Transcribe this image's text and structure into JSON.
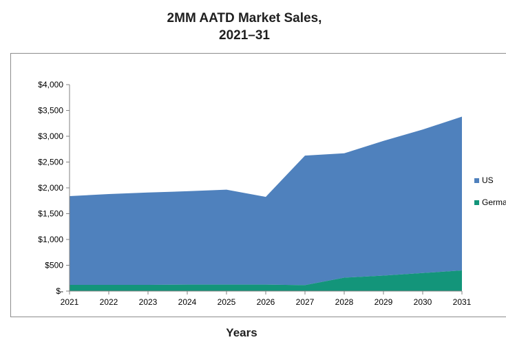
{
  "chart_data": {
    "type": "area",
    "title_line1": "2MM AATD Market Sales,",
    "title_line2": "2021–31",
    "xlabel": "Years",
    "ylabel": "",
    "x": [
      2021,
      2022,
      2023,
      2024,
      2025,
      2026,
      2027,
      2028,
      2029,
      2030,
      2031
    ],
    "ylim": [
      0,
      4000
    ],
    "yticks": [
      0,
      500,
      1000,
      1500,
      2000,
      2500,
      3000,
      3500,
      4000
    ],
    "ytick_labels": [
      "$-",
      "$500",
      "$1,000",
      "$1,500",
      "$2,000",
      "$2,500",
      "$3,000",
      "$3,500",
      "$4,000"
    ],
    "stacked": true,
    "legend_position": "right",
    "series": [
      {
        "name": "US",
        "color": "#4f81bd",
        "values": [
          1720,
          1760,
          1790,
          1810,
          1840,
          1700,
          2510,
          2410,
          2610,
          2780,
          2980
        ]
      },
      {
        "name": "Germany",
        "color": "#13957a",
        "values": [
          120,
          120,
          120,
          125,
          125,
          125,
          115,
          260,
          300,
          350,
          400
        ]
      }
    ],
    "legend_labels": [
      "US",
      "Germa"
    ]
  }
}
